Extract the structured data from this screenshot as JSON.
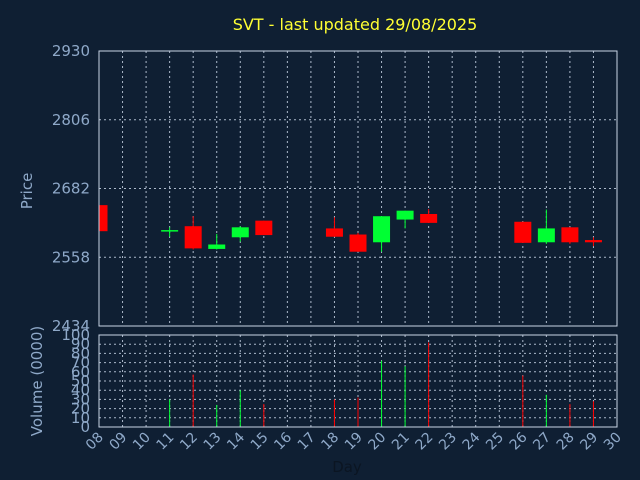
{
  "chart_data": {
    "type": "candlestick",
    "title": "SVT - last updated 29/08/2025",
    "price_ylabel": "Price",
    "volume_ylabel": "Volume (0000)",
    "xlabel": "Day",
    "price_ylim": [
      2434,
      2930
    ],
    "price_ticks": [
      "2930",
      "2806",
      "2682",
      "2558",
      "2434"
    ],
    "volume_ylim": [
      0,
      100
    ],
    "volume_ticks": [
      "100",
      "90",
      "80",
      "70",
      "60",
      "50",
      "40",
      "30",
      "20",
      "10",
      "0"
    ],
    "x_ticks": [
      "08",
      "09",
      "10",
      "11",
      "12",
      "13",
      "14",
      "15",
      "16",
      "17",
      "18",
      "19",
      "20",
      "21",
      "22",
      "23",
      "24",
      "25",
      "26",
      "27",
      "28",
      "29",
      "30"
    ],
    "grid": true,
    "up_color": "#00ff33",
    "down_color": "#ff0000",
    "candles": [
      {
        "day": "08",
        "open": 2652,
        "high": 2652,
        "low": 2605,
        "close": 2605
      },
      {
        "day": "11",
        "open": 2605,
        "high": 2612,
        "low": 2595,
        "close": 2607
      },
      {
        "day": "12",
        "open": 2614,
        "high": 2632,
        "low": 2572,
        "close": 2574
      },
      {
        "day": "13",
        "open": 2573,
        "high": 2600,
        "low": 2572,
        "close": 2581
      },
      {
        "day": "14",
        "open": 2594,
        "high": 2614,
        "low": 2586,
        "close": 2612
      },
      {
        "day": "15",
        "open": 2624,
        "high": 2624,
        "low": 2598,
        "close": 2598
      },
      {
        "day": "18",
        "open": 2610,
        "high": 2630,
        "low": 2595,
        "close": 2595
      },
      {
        "day": "19",
        "open": 2599,
        "high": 2602,
        "low": 2568,
        "close": 2568
      },
      {
        "day": "20",
        "open": 2585,
        "high": 2632,
        "low": 2568,
        "close": 2632
      },
      {
        "day": "21",
        "open": 2626,
        "high": 2642,
        "low": 2610,
        "close": 2642
      },
      {
        "day": "22",
        "open": 2636,
        "high": 2645,
        "low": 2620,
        "close": 2620
      },
      {
        "day": "26",
        "open": 2622,
        "high": 2622,
        "low": 2584,
        "close": 2584
      },
      {
        "day": "27",
        "open": 2585,
        "high": 2644,
        "low": 2582,
        "close": 2610
      },
      {
        "day": "28",
        "open": 2612,
        "high": 2612,
        "low": 2582,
        "close": 2585
      },
      {
        "day": "29",
        "open": 2589,
        "high": 2594,
        "low": 2578,
        "close": 2585
      }
    ],
    "volume": [
      {
        "day": "08",
        "value": 0,
        "dir": "down"
      },
      {
        "day": "11",
        "value": 30,
        "dir": "up"
      },
      {
        "day": "12",
        "value": 57,
        "dir": "down"
      },
      {
        "day": "13",
        "value": 24,
        "dir": "up"
      },
      {
        "day": "14",
        "value": 40,
        "dir": "up"
      },
      {
        "day": "15",
        "value": 25,
        "dir": "down"
      },
      {
        "day": "18",
        "value": 30,
        "dir": "down"
      },
      {
        "day": "19",
        "value": 32,
        "dir": "down"
      },
      {
        "day": "20",
        "value": 72,
        "dir": "up"
      },
      {
        "day": "21",
        "value": 66,
        "dir": "up"
      },
      {
        "day": "22",
        "value": 92,
        "dir": "down"
      },
      {
        "day": "26",
        "value": 56,
        "dir": "down"
      },
      {
        "day": "27",
        "value": 35,
        "dir": "up"
      },
      {
        "day": "28",
        "value": 25,
        "dir": "down"
      },
      {
        "day": "29",
        "value": 28,
        "dir": "down"
      }
    ]
  }
}
